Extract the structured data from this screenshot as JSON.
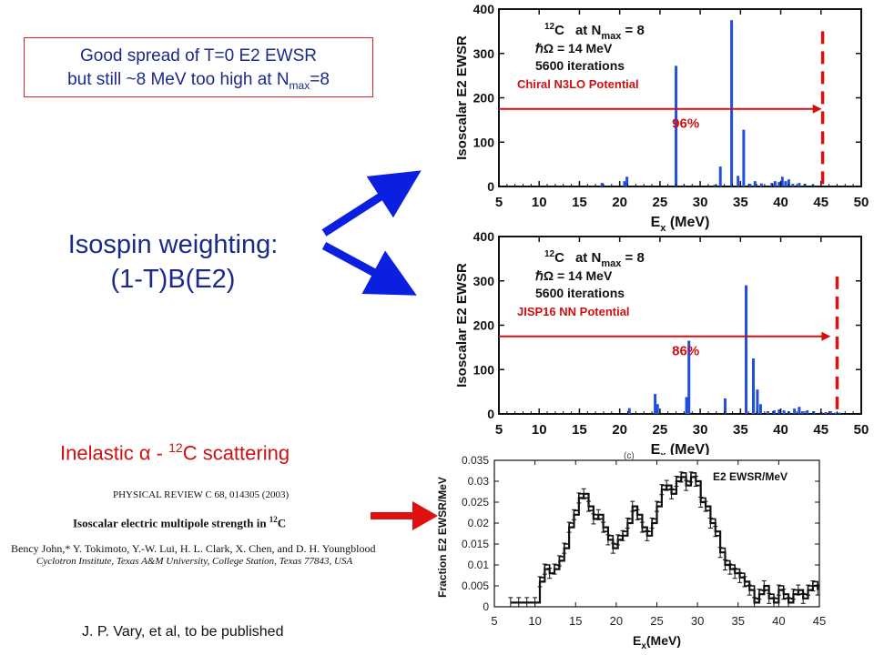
{
  "note": {
    "line1": "Good spread of T=0 E2 EWSR",
    "line2_pre": "but still ~8 MeV too high at N",
    "line2_sub": "max",
    "line2_post": "=8"
  },
  "isospin": {
    "line1": "Isospin weighting:",
    "line2": "(1-T)B(E2)"
  },
  "inelastic": {
    "pre": "Inelastic ",
    "alpha": "α",
    "mid": " - ",
    "sup": "12",
    "post": "C scattering"
  },
  "reference": {
    "journal": "PHYSICAL REVIEW C 68, 014305 (2003)",
    "title_pre": "Isoscalar electric multipole strength in ",
    "title_sup": "12",
    "title_post": "C",
    "authors": "Bency John,* Y. Tokimoto, Y.-W. Lui, H. L. Clark, X. Chen, and D. H. Youngblood",
    "affiliation": "Cyclotron Institute, Texas A&M University, College Station, Texas 77843, USA"
  },
  "footer": "J. P. Vary, et al, to be published",
  "colors": {
    "text_blue": "#1a2a8a",
    "accent_red": "#d01010",
    "bar_blue": "#1f4fe0",
    "arrow_blue": "#0a1fe0"
  },
  "chart_data": [
    {
      "type": "bar",
      "ylabel": "Isoscalar E2 EWSR",
      "xlabel_main": "E",
      "xlabel_sub": "x",
      "xlabel_unit": " (MeV)",
      "xlim": [
        5,
        50
      ],
      "ylim": [
        0,
        400
      ],
      "xticks": [
        "5",
        "10",
        "15",
        "20",
        "25",
        "30",
        "35",
        "40",
        "45",
        "50"
      ],
      "yticks": [
        "0",
        "100",
        "200",
        "300",
        "400"
      ],
      "legend": {
        "nucleus_sup": "12",
        "nucleus": "C",
        "at": "at N",
        "at_sub": "max",
        "at_eq": " = 8",
        "hbar": "ℏΩ = 14 MeV",
        "iterations": "5600 iterations",
        "potential": "Chiral N3LO Potential"
      },
      "percent_label": "96%",
      "arrow_end_x": 45.1,
      "arrow_y": 175,
      "dashed_x": 45.2,
      "bars": [
        [
          17.8,
          8
        ],
        [
          20.6,
          12
        ],
        [
          20.9,
          22
        ],
        [
          27.0,
          272
        ],
        [
          28.0,
          3
        ],
        [
          31.8,
          4
        ],
        [
          32.5,
          45
        ],
        [
          33.9,
          375
        ],
        [
          34.7,
          24
        ],
        [
          35.4,
          128
        ],
        [
          36.2,
          6
        ],
        [
          36.8,
          12
        ],
        [
          37.6,
          7
        ],
        [
          38.9,
          8
        ],
        [
          39.3,
          12
        ],
        [
          39.8,
          10
        ],
        [
          40.2,
          22
        ],
        [
          40.6,
          12
        ],
        [
          41.0,
          16
        ],
        [
          41.5,
          6
        ],
        [
          42.3,
          8
        ],
        [
          43.0,
          6
        ],
        [
          44.0,
          4
        ]
      ]
    },
    {
      "type": "bar",
      "ylabel": "Isoscalar E2 EWSR",
      "xlabel_main": "E",
      "xlabel_sub": "x",
      "xlabel_unit": " (MeV)",
      "xlim": [
        5,
        50
      ],
      "ylim": [
        0,
        400
      ],
      "xticks": [
        "5",
        "10",
        "15",
        "20",
        "25",
        "30",
        "35",
        "40",
        "45",
        "50"
      ],
      "yticks": [
        "0",
        "100",
        "200",
        "300",
        "400"
      ],
      "legend": {
        "nucleus_sup": "12",
        "nucleus": "C",
        "at": "at N",
        "at_sub": "max",
        "at_eq": " = 8",
        "hbar": "ℏΩ = 14 MeV",
        "iterations": "5600 iterations",
        "potential": "JISP16 NN Potential"
      },
      "percent_label": "86%",
      "arrow_end_x": 46.2,
      "arrow_y": 175,
      "dashed_x": 47.0,
      "bars": [
        [
          21.2,
          13
        ],
        [
          24.4,
          45
        ],
        [
          24.7,
          22
        ],
        [
          28.3,
          38
        ],
        [
          28.6,
          165
        ],
        [
          33.1,
          35
        ],
        [
          35.7,
          290
        ],
        [
          36.6,
          125
        ],
        [
          37.1,
          55
        ],
        [
          37.5,
          22
        ],
        [
          38.4,
          6
        ],
        [
          39.2,
          8
        ],
        [
          39.8,
          10
        ],
        [
          40.4,
          8
        ],
        [
          41.0,
          6
        ],
        [
          41.7,
          12
        ],
        [
          42.3,
          16
        ],
        [
          42.7,
          6
        ],
        [
          43.3,
          8
        ],
        [
          44.1,
          6
        ],
        [
          45.0,
          4
        ],
        [
          45.6,
          4
        ],
        [
          46.2,
          6
        ],
        [
          46.8,
          3
        ],
        [
          47.3,
          3
        ]
      ]
    },
    {
      "type": "line",
      "ylabel": "Fraction E2 EWSR/MeV",
      "xlabel_main": "E",
      "xlabel_sub": "x",
      "xlabel_unit": "(MeV)",
      "xlim": [
        5,
        45
      ],
      "ylim": [
        0,
        0.035
      ],
      "xticks": [
        "5",
        "10",
        "15",
        "20",
        "25",
        "30",
        "35",
        "40",
        "45"
      ],
      "yticks": [
        "0",
        "0.005",
        "0.01",
        "0.015",
        "0.02",
        "0.025",
        "0.03",
        "0.035"
      ],
      "corner_label": "(c)",
      "series_label": "E2 EWSR/MeV",
      "points": [
        [
          7.0,
          0.001
        ],
        [
          8.0,
          0.001
        ],
        [
          9.0,
          0.001
        ],
        [
          10.0,
          0.001
        ],
        [
          10.6,
          0.006
        ],
        [
          11.2,
          0.009
        ],
        [
          11.8,
          0.008
        ],
        [
          12.4,
          0.009
        ],
        [
          13.0,
          0.011
        ],
        [
          13.6,
          0.014
        ],
        [
          14.2,
          0.019
        ],
        [
          14.8,
          0.022
        ],
        [
          15.4,
          0.026
        ],
        [
          16.0,
          0.027
        ],
        [
          16.6,
          0.024
        ],
        [
          17.2,
          0.021
        ],
        [
          17.8,
          0.022
        ],
        [
          18.4,
          0.019
        ],
        [
          19.0,
          0.016
        ],
        [
          19.6,
          0.014
        ],
        [
          20.2,
          0.016
        ],
        [
          20.8,
          0.017
        ],
        [
          21.4,
          0.02
        ],
        [
          22.0,
          0.024
        ],
        [
          22.6,
          0.022
        ],
        [
          23.2,
          0.019
        ],
        [
          23.8,
          0.017
        ],
        [
          24.4,
          0.02
        ],
        [
          25.0,
          0.024
        ],
        [
          25.6,
          0.028
        ],
        [
          26.2,
          0.029
        ],
        [
          26.8,
          0.027
        ],
        [
          27.4,
          0.03
        ],
        [
          28.0,
          0.031
        ],
        [
          28.6,
          0.029
        ],
        [
          29.2,
          0.031
        ],
        [
          29.8,
          0.03
        ],
        [
          30.4,
          0.025
        ],
        [
          31.0,
          0.024
        ],
        [
          31.6,
          0.02
        ],
        [
          32.2,
          0.018
        ],
        [
          32.8,
          0.013
        ],
        [
          33.4,
          0.01
        ],
        [
          34.0,
          0.009
        ],
        [
          34.6,
          0.008
        ],
        [
          35.2,
          0.007
        ],
        [
          35.8,
          0.006
        ],
        [
          36.4,
          0.004
        ],
        [
          37.0,
          0.001
        ],
        [
          37.6,
          0.003
        ],
        [
          38.2,
          0.005
        ],
        [
          38.8,
          0.002
        ],
        [
          39.4,
          0.001
        ],
        [
          40.0,
          0.004
        ],
        [
          40.6,
          0.003
        ],
        [
          41.2,
          0.001
        ],
        [
          41.8,
          0.003
        ],
        [
          42.4,
          0.004
        ],
        [
          43.0,
          0.002
        ],
        [
          43.6,
          0.004
        ],
        [
          44.2,
          0.005
        ],
        [
          44.8,
          0.004
        ]
      ],
      "points_b": [
        [
          7.0,
          0.001
        ],
        [
          8.0,
          0.001
        ],
        [
          9.0,
          0.001
        ],
        [
          10.0,
          0.001
        ],
        [
          10.6,
          0.007
        ],
        [
          11.2,
          0.01
        ],
        [
          11.8,
          0.008
        ],
        [
          12.4,
          0.01
        ],
        [
          13.0,
          0.012
        ],
        [
          13.6,
          0.015
        ],
        [
          14.2,
          0.02
        ],
        [
          14.8,
          0.023
        ],
        [
          15.4,
          0.027
        ],
        [
          16.0,
          0.026
        ],
        [
          16.6,
          0.023
        ],
        [
          17.2,
          0.022
        ],
        [
          17.8,
          0.021
        ],
        [
          18.4,
          0.018
        ],
        [
          19.0,
          0.017
        ],
        [
          19.6,
          0.015
        ],
        [
          20.2,
          0.017
        ],
        [
          20.8,
          0.018
        ],
        [
          21.4,
          0.021
        ],
        [
          22.0,
          0.023
        ],
        [
          22.6,
          0.021
        ],
        [
          23.2,
          0.018
        ],
        [
          23.8,
          0.018
        ],
        [
          24.4,
          0.021
        ],
        [
          25.0,
          0.025
        ],
        [
          25.6,
          0.029
        ],
        [
          26.2,
          0.028
        ],
        [
          26.8,
          0.028
        ],
        [
          27.4,
          0.031
        ],
        [
          28.0,
          0.032
        ],
        [
          28.6,
          0.03
        ],
        [
          29.2,
          0.032
        ],
        [
          29.8,
          0.029
        ],
        [
          30.4,
          0.026
        ],
        [
          31.0,
          0.023
        ],
        [
          31.6,
          0.021
        ],
        [
          32.2,
          0.017
        ],
        [
          32.8,
          0.014
        ],
        [
          33.4,
          0.011
        ],
        [
          34.0,
          0.01
        ],
        [
          34.6,
          0.009
        ],
        [
          35.2,
          0.008
        ],
        [
          35.8,
          0.005
        ],
        [
          36.4,
          0.005
        ],
        [
          37.0,
          0.002
        ],
        [
          37.6,
          0.004
        ],
        [
          38.2,
          0.004
        ],
        [
          38.8,
          0.003
        ],
        [
          39.4,
          0.002
        ],
        [
          40.0,
          0.005
        ],
        [
          40.6,
          0.002
        ],
        [
          41.2,
          0.002
        ],
        [
          41.8,
          0.004
        ],
        [
          42.4,
          0.003
        ],
        [
          43.0,
          0.003
        ],
        [
          43.6,
          0.005
        ],
        [
          44.2,
          0.006
        ],
        [
          44.8,
          0.005
        ]
      ]
    }
  ]
}
